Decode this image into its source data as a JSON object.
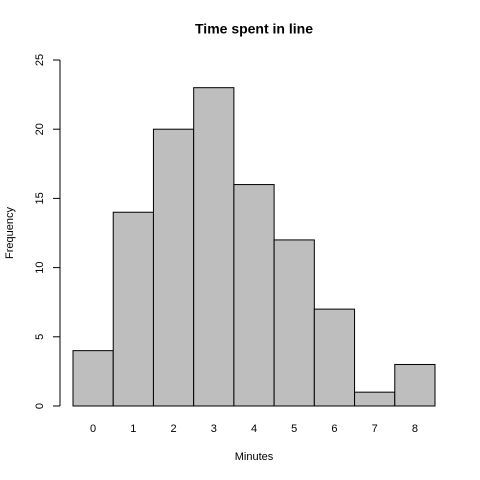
{
  "chart_data": {
    "type": "bar",
    "title": "Time spent in line",
    "x_label": "Minutes",
    "y_label": "Frequency",
    "categories": [
      "0",
      "1",
      "2",
      "3",
      "4",
      "5",
      "6",
      "7",
      "8"
    ],
    "values": [
      4,
      14,
      20,
      23,
      16,
      12,
      7,
      1,
      3
    ],
    "color": "#bebebe",
    "ylim": [
      0,
      25
    ],
    "yticks": [
      0,
      5,
      10,
      15,
      20,
      25
    ],
    "grid": false
  }
}
